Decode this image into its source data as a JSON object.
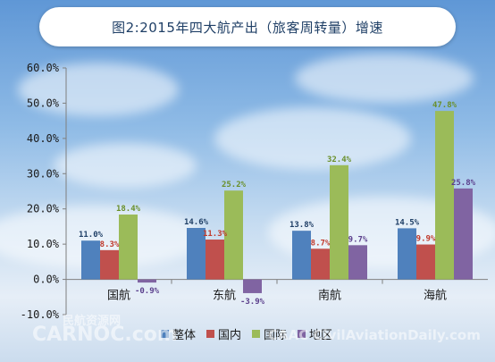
{
  "title": "图2:2015年四大航产出（旅客周转量）增速",
  "watermark": {
    "left_text": "CARNOC.com",
    "left_cn": "民航资源网",
    "right_text": "CAAC CivilAviationDaily.com"
  },
  "colors": {
    "整体": "#4f81bd",
    "国内": "#c0504d",
    "国际": "#9bbb59",
    "地区": "#8064a2",
    "label_整体": "#1f3f66",
    "label_国内": "#c0392b",
    "label_国际": "#6a8f2a",
    "label_地区": "#5b3f8c"
  },
  "chart_data": {
    "type": "bar",
    "title": "图2:2015年四大航产出（旅客周转量）增速",
    "categories": [
      "国航",
      "东航",
      "南航",
      "海航"
    ],
    "series": [
      {
        "name": "整体",
        "values": [
          11.0,
          14.6,
          13.8,
          14.5
        ],
        "labels": [
          "11.0%",
          "14.6%",
          "13.8%",
          "14.5%"
        ]
      },
      {
        "name": "国内",
        "values": [
          8.3,
          11.3,
          8.7,
          9.9
        ],
        "labels": [
          "8.3%",
          "11.3%",
          "8.7%",
          "9.9%"
        ]
      },
      {
        "name": "国际",
        "values": [
          18.4,
          25.2,
          32.4,
          47.8
        ],
        "labels": [
          "18.4%",
          "25.2%",
          "32.4%",
          "47.8%"
        ]
      },
      {
        "name": "地区",
        "values": [
          -0.9,
          -3.9,
          9.7,
          25.8
        ],
        "labels": [
          "-0.9%",
          "-3.9%",
          "9.7%",
          "25.8%"
        ]
      }
    ],
    "ylim": [
      -10,
      60
    ],
    "yticks": [
      "60.0%",
      "50.0%",
      "40.0%",
      "30.0%",
      "20.0%",
      "10.0%",
      "0.0%",
      "-10.0%"
    ],
    "ytick_values": [
      60,
      50,
      40,
      30,
      20,
      10,
      0,
      -10
    ],
    "legend": {
      "position": "bottom",
      "entries": [
        "整体",
        "国内",
        "国际",
        "地区"
      ]
    },
    "grid": false
  }
}
